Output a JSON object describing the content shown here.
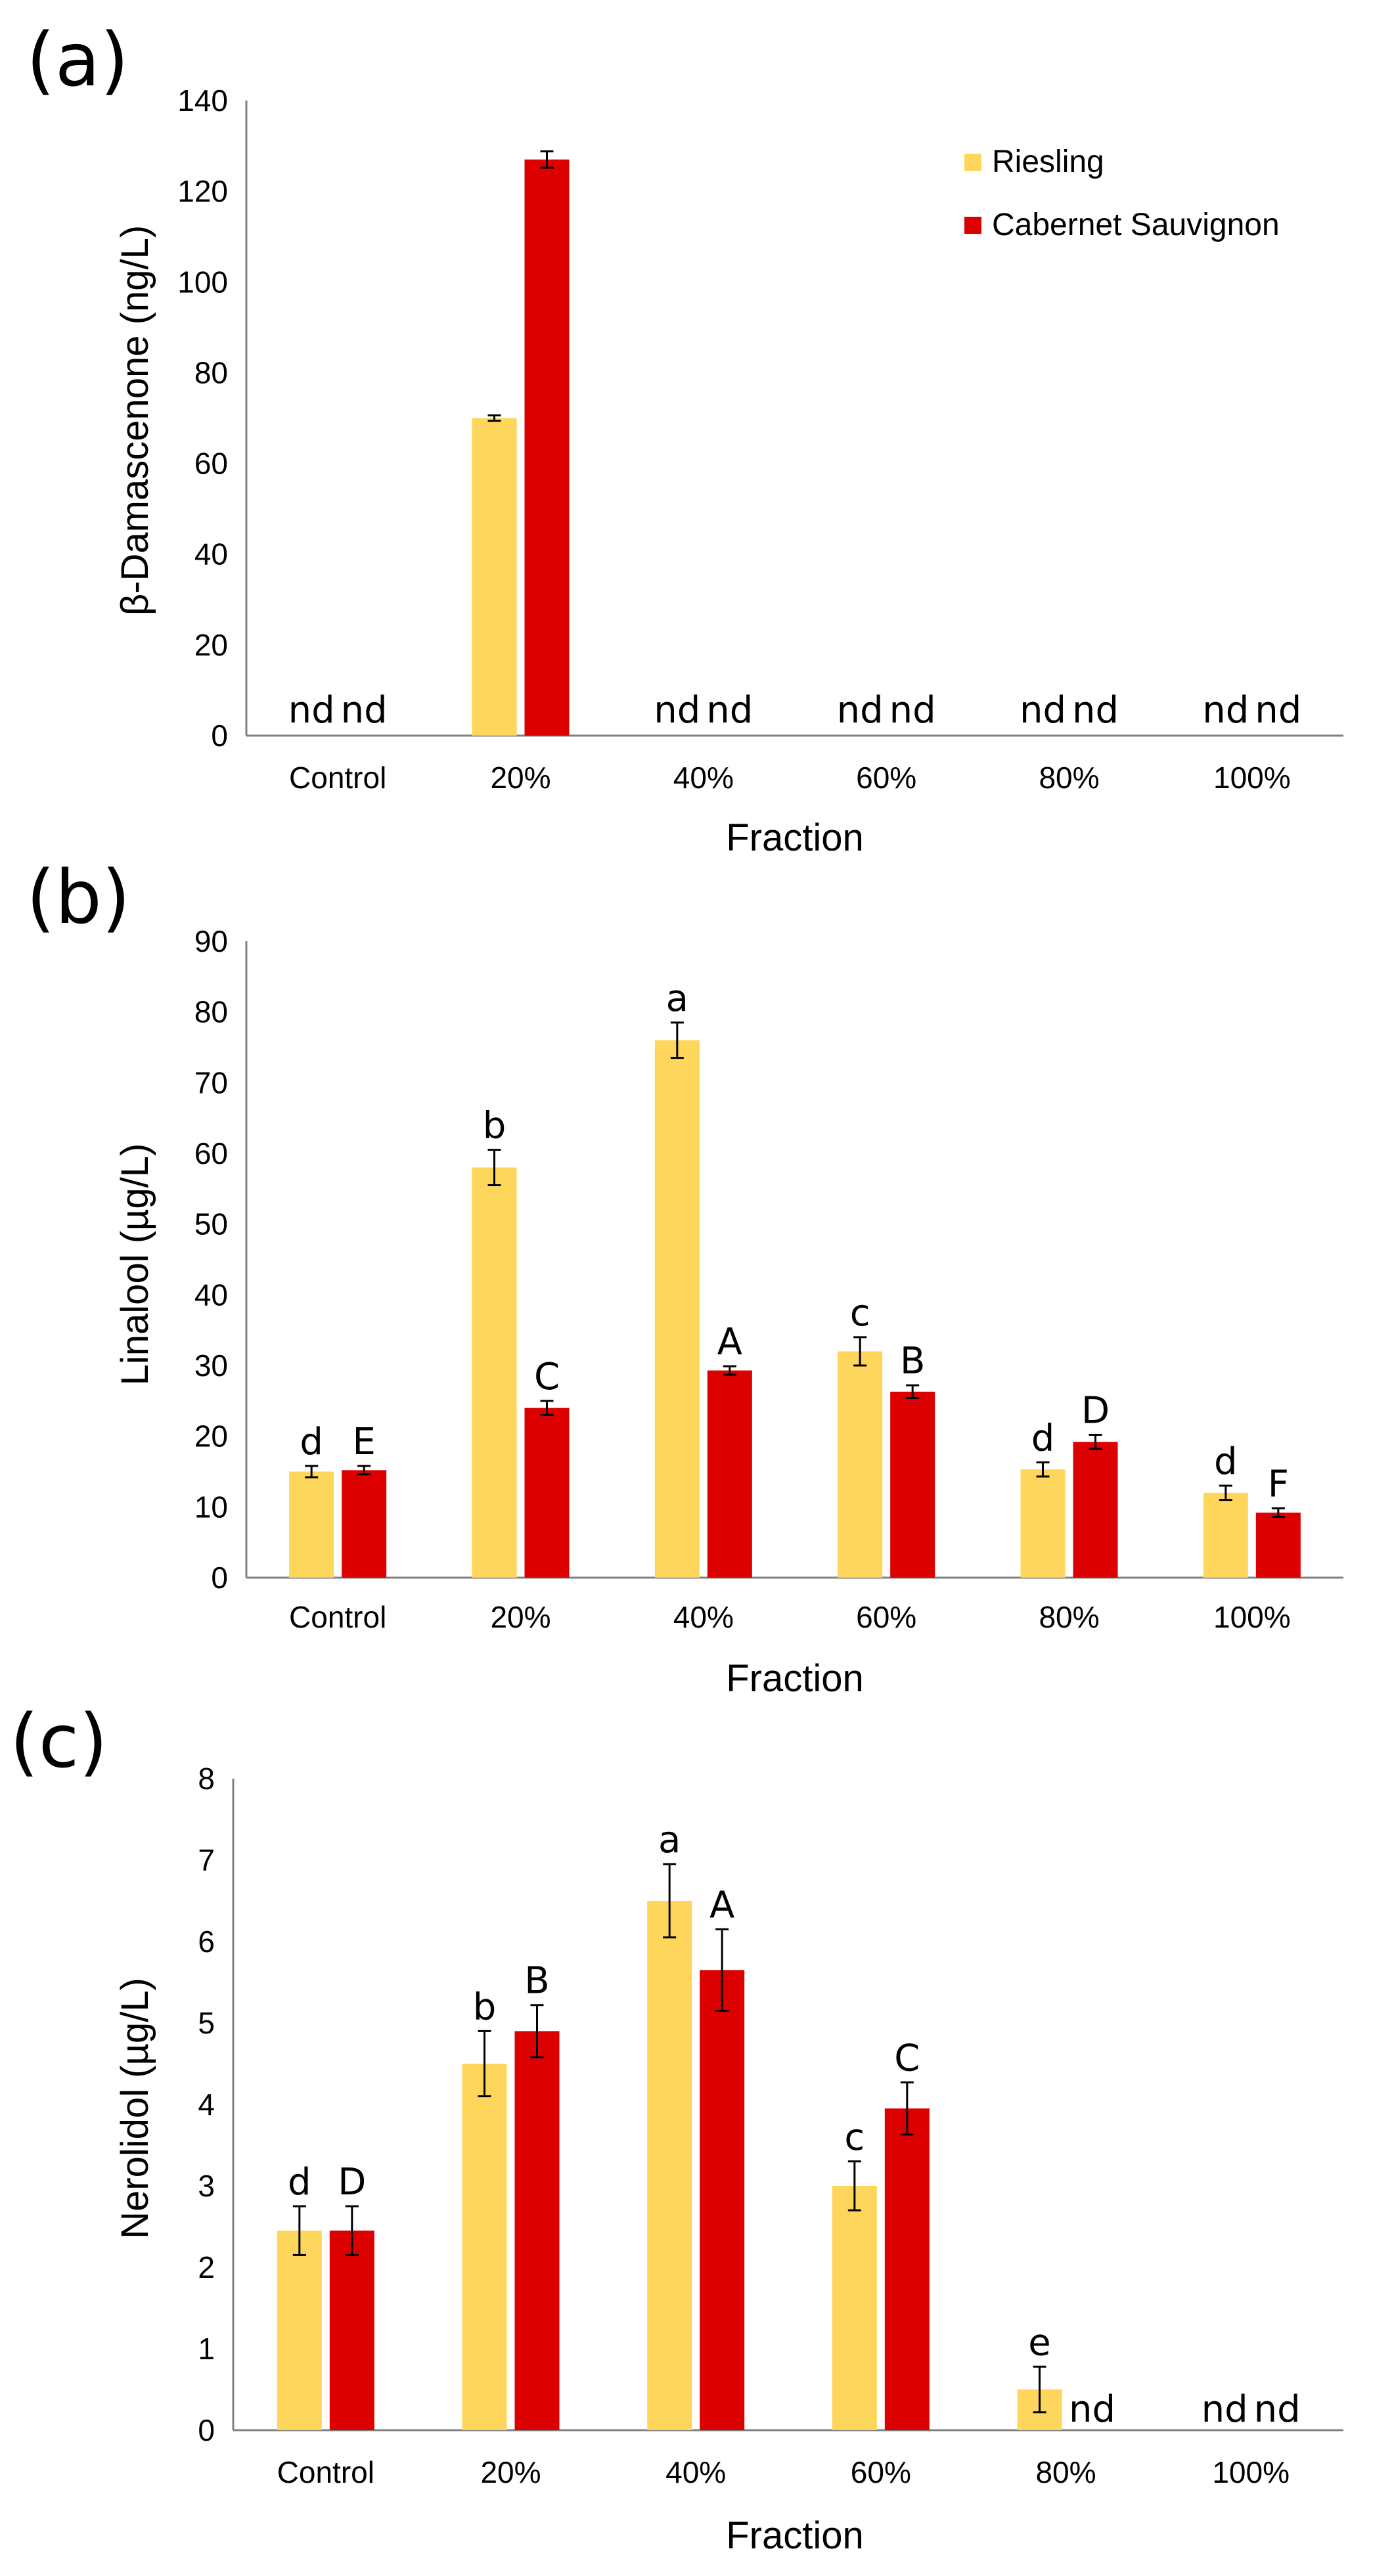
{
  "colors": {
    "riesling": "#FFD65C",
    "cabernet": "#DD0000",
    "axis": "#808080",
    "text": "#000000"
  },
  "chart_data": [
    {
      "panel_label": "(a)",
      "type": "bar",
      "title": "",
      "xlabel": "Fraction",
      "ylabel": "β-Damascenone (ng/L)",
      "ylim": [
        0,
        140
      ],
      "yticks": [
        0,
        20,
        40,
        60,
        80,
        100,
        120,
        140
      ],
      "categories": [
        "Control",
        "20%",
        "40%",
        "60%",
        "80%",
        "100%"
      ],
      "legend": {
        "position": "top-right",
        "entries": [
          "Riesling",
          "Cabernet Sauvignon"
        ]
      },
      "series": [
        {
          "name": "Riesling",
          "values": [
            0,
            70,
            0,
            0,
            0,
            0
          ],
          "errors": [
            0,
            0.6,
            0,
            0,
            0,
            0
          ],
          "letters": [
            "",
            "",
            "",
            "",
            "",
            ""
          ],
          "nd": [
            true,
            false,
            true,
            true,
            true,
            true
          ]
        },
        {
          "name": "Cabernet Sauvignon",
          "values": [
            0,
            127,
            0,
            0,
            0,
            0
          ],
          "errors": [
            0,
            1.8,
            0,
            0,
            0,
            0
          ],
          "letters": [
            "",
            "",
            "",
            "",
            "",
            ""
          ],
          "nd": [
            true,
            false,
            true,
            true,
            true,
            true
          ]
        }
      ]
    },
    {
      "panel_label": "(b)",
      "type": "bar",
      "title": "",
      "xlabel": "Fraction",
      "ylabel": "Linalool (µg/L)",
      "ylim": [
        0,
        90
      ],
      "yticks": [
        0,
        10,
        20,
        30,
        40,
        50,
        60,
        70,
        80,
        90
      ],
      "categories": [
        "Control",
        "20%",
        "40%",
        "60%",
        "80%",
        "100%"
      ],
      "legend": null,
      "series": [
        {
          "name": "Riesling",
          "values": [
            15,
            58,
            76,
            32,
            15.3,
            12
          ],
          "errors": [
            0.8,
            2.5,
            2.5,
            2.0,
            1.0,
            1.0
          ],
          "letters": [
            "d",
            "b",
            "a",
            "c",
            "d",
            "d"
          ],
          "nd": [
            false,
            false,
            false,
            false,
            false,
            false
          ]
        },
        {
          "name": "Cabernet Sauvignon",
          "values": [
            15.2,
            24,
            29.3,
            26.3,
            19.2,
            9.2
          ],
          "errors": [
            0.6,
            1.0,
            0.6,
            0.9,
            1.0,
            0.6
          ],
          "letters": [
            "E",
            "C",
            "A",
            "B",
            "D",
            "F"
          ],
          "nd": [
            false,
            false,
            false,
            false,
            false,
            false
          ]
        }
      ]
    },
    {
      "panel_label": "(c)",
      "type": "bar",
      "title": "",
      "xlabel": "Fraction",
      "ylabel": "Nerolidol (µg/L)",
      "ylim": [
        0,
        8
      ],
      "yticks": [
        0,
        1,
        2,
        3,
        4,
        5,
        6,
        7,
        8
      ],
      "categories": [
        "Control",
        "20%",
        "40%",
        "60%",
        "80%",
        "100%"
      ],
      "legend": null,
      "series": [
        {
          "name": "Riesling",
          "values": [
            2.45,
            4.5,
            6.5,
            3.0,
            0.5,
            0
          ],
          "errors": [
            0.3,
            0.4,
            0.45,
            0.3,
            0.28,
            0
          ],
          "letters": [
            "d",
            "b",
            "a",
            "c",
            "e",
            ""
          ],
          "nd": [
            false,
            false,
            false,
            false,
            false,
            true
          ]
        },
        {
          "name": "Cabernet Sauvignon",
          "values": [
            2.45,
            4.9,
            5.65,
            3.95,
            0,
            0
          ],
          "errors": [
            0.3,
            0.32,
            0.5,
            0.32,
            0,
            0
          ],
          "letters": [
            "D",
            "B",
            "A",
            "C",
            "",
            ""
          ],
          "nd": [
            false,
            false,
            false,
            false,
            true,
            true
          ]
        }
      ]
    }
  ],
  "nd_label": "nd"
}
